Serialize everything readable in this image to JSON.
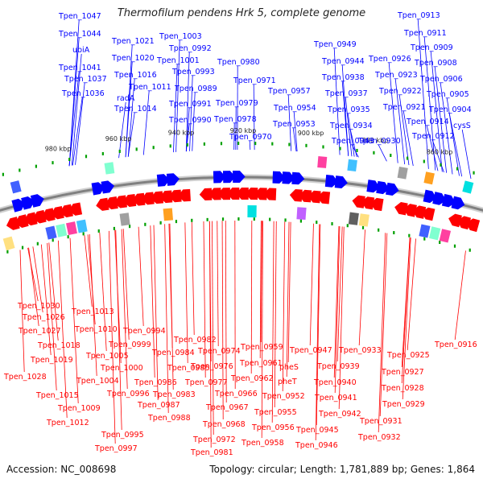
{
  "title": "Thermofilum pendens Hrk 5, complete genome",
  "accession": "Accession: NC_008698",
  "summary": "Topology: circular; Length: 1,781,889 bp; Genes: 1,864",
  "colors": {
    "forward": "#0000ff",
    "reverse": "#ff0000",
    "backbone": "#808080",
    "tick": "#00a000",
    "text": "#111111"
  },
  "scale_labels": [
    "980 kbp",
    "960 kbp",
    "940 kbp",
    "920 kbp",
    "900 kbp",
    "880 kbp",
    "860 kbp"
  ],
  "top_genes": [
    "Tpen_1047",
    "Tpen_1044",
    "ubiA",
    "Tpen_1041",
    "Tpen_1037",
    "Tpen_1036",
    "Tpen_1021",
    "Tpen_1020",
    "Tpen_1016",
    "radA",
    "Tpen_1011",
    "Tpen_1014",
    "Tpen_1003",
    "Tpen_0992",
    "Tpen_1001",
    "Tpen_0993",
    "Tpen_0989",
    "Tpen_0991",
    "Tpen_0990",
    "Tpen_0980",
    "Tpen_0971",
    "Tpen_0979",
    "Tpen_0978",
    "Tpen_0970",
    "Tpen_0949",
    "Tpen_0944",
    "Tpen_0957",
    "Tpen_0938",
    "Tpen_0954",
    "Tpen_0937",
    "Tpen_0953",
    "Tpen_0935",
    "Tpen_0934",
    "Tpen_0943",
    "Tpen_0926",
    "Tpen_0923",
    "Tpen_0922",
    "Tpen_0921",
    "Tpen_0930",
    "Tpen_0913",
    "Tpen_0911",
    "Tpen_0909",
    "Tpen_0908",
    "Tpen_0906",
    "Tpen_0905",
    "Tpen_0904",
    "Tpen_0914",
    "cysS",
    "Tpen_0912"
  ],
  "bottom_genes": [
    "Tpen_1030",
    "Tpen_1026",
    "Tpen_1027",
    "Tpen_1018",
    "Tpen_1019",
    "Tpen_1028",
    "Tpen_1013",
    "Tpen_1010",
    "Tpen_1005",
    "Tpen_1004",
    "Tpen_1015",
    "Tpen_1009",
    "Tpen_1012",
    "Tpen_0994",
    "Tpen_0999",
    "Tpen_1000",
    "Tpen_0996",
    "Tpen_0987",
    "Tpen_0988",
    "Tpen_0995",
    "Tpen_0997",
    "Tpen_0984",
    "Tpen_0985",
    "Tpen_0986",
    "Tpen_0983",
    "Tpen_0982",
    "Tpen_0974",
    "Tpen_0976",
    "Tpen_0977",
    "Tpen_0967",
    "Tpen_0968",
    "Tpen_0972",
    "Tpen_0981",
    "Tpen_0959",
    "Tpen_0961",
    "Tpen_0962",
    "Tpen_0966",
    "Tpen_0955",
    "Tpen_0956",
    "Tpen_0958",
    "pheS",
    "pheT",
    "Tpen_0952",
    "Tpen_0947",
    "Tpen_0939",
    "Tpen_0940",
    "Tpen_0941",
    "Tpen_0942",
    "Tpen_0945",
    "Tpen_0946",
    "Tpen_0933",
    "Tpen_0931",
    "Tpen_0932",
    "Tpen_0925",
    "Tpen_0927",
    "Tpen_0928",
    "Tpen_0929",
    "Tpen_0916"
  ]
}
